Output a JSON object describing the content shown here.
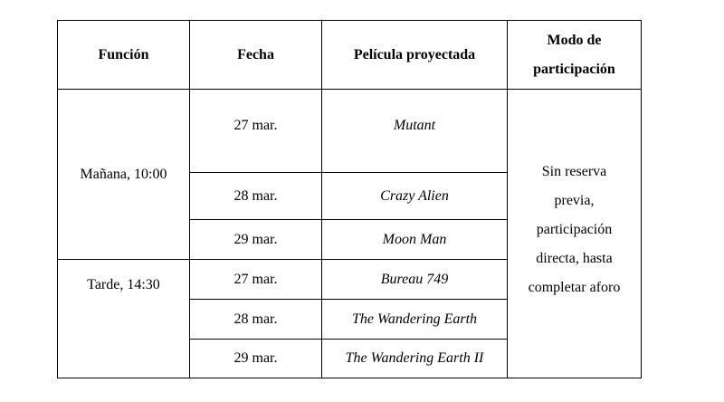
{
  "table": {
    "headers": [
      "Función",
      "Fecha",
      "Película proyectada",
      "Modo de participación"
    ],
    "sessions": [
      {
        "funcion": "Mañana, 10:00",
        "rows": [
          {
            "fecha": "27 mar.",
            "pelicula": "Mutant"
          },
          {
            "fecha": "28 mar.",
            "pelicula": "Crazy Alien"
          },
          {
            "fecha": "29 mar.",
            "pelicula": "Moon Man"
          }
        ]
      },
      {
        "funcion": "Tarde, 14:30",
        "rows": [
          {
            "fecha": "27 mar.",
            "pelicula": "Bureau 749"
          },
          {
            "fecha": "28 mar.",
            "pelicula": "The Wandering Earth"
          },
          {
            "fecha": "29 mar.",
            "pelicula": "The Wandering Earth II"
          }
        ]
      }
    ],
    "modo": "Sin reserva previa, participación directa, hasta completar aforo"
  }
}
